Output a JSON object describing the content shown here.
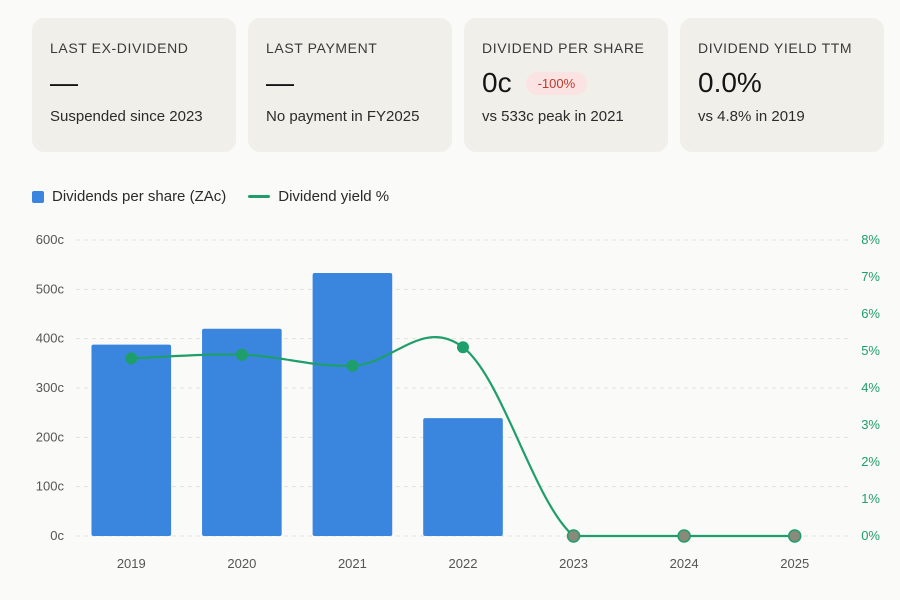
{
  "cards": [
    {
      "label": "LAST EX-DIVIDEND",
      "value": "—",
      "badge": "",
      "sub": "Suspended since 2023"
    },
    {
      "label": "LAST PAYMENT",
      "value": "—",
      "badge": "",
      "sub": "No payment in FY2025"
    },
    {
      "label": "DIVIDEND PER SHARE",
      "value": "0c",
      "badge": "-100%",
      "sub": "vs 533c peak in 2021"
    },
    {
      "label": "DIVIDEND YIELD TTM",
      "value": "0.0%",
      "badge": "",
      "sub": "vs 4.8% in 2019"
    }
  ],
  "legend": {
    "bars": "Dividends per share (ZAc)",
    "line": "Dividend yield %"
  },
  "colors": {
    "bar": "#3a86df",
    "line": "#1e9e6a",
    "zero_point": "#8a8a7a",
    "badge_text": "#c0392b"
  },
  "chart_data": {
    "type": "bar",
    "categories": [
      "2019",
      "2020",
      "2021",
      "2022",
      "2023",
      "2024",
      "2025"
    ],
    "series": [
      {
        "name": "Dividends per share (ZAc)",
        "type": "bar",
        "axis": "left",
        "values": [
          388,
          420,
          533,
          239,
          0,
          0,
          0
        ]
      },
      {
        "name": "Dividend yield %",
        "type": "line",
        "axis": "right",
        "values": [
          4.8,
          4.9,
          4.6,
          5.1,
          0.0,
          0.0,
          0.0
        ]
      }
    ],
    "y_left": {
      "min": 0,
      "max": 600,
      "ticks": [
        "0c",
        "100c",
        "200c",
        "300c",
        "400c",
        "500c",
        "600c"
      ]
    },
    "y_right": {
      "min": 0,
      "max": 8,
      "ticks": [
        "0%",
        "1%",
        "2%",
        "3%",
        "4%",
        "5%",
        "6%",
        "7%",
        "8%"
      ]
    },
    "grid": true,
    "legend_position": "top-left"
  }
}
